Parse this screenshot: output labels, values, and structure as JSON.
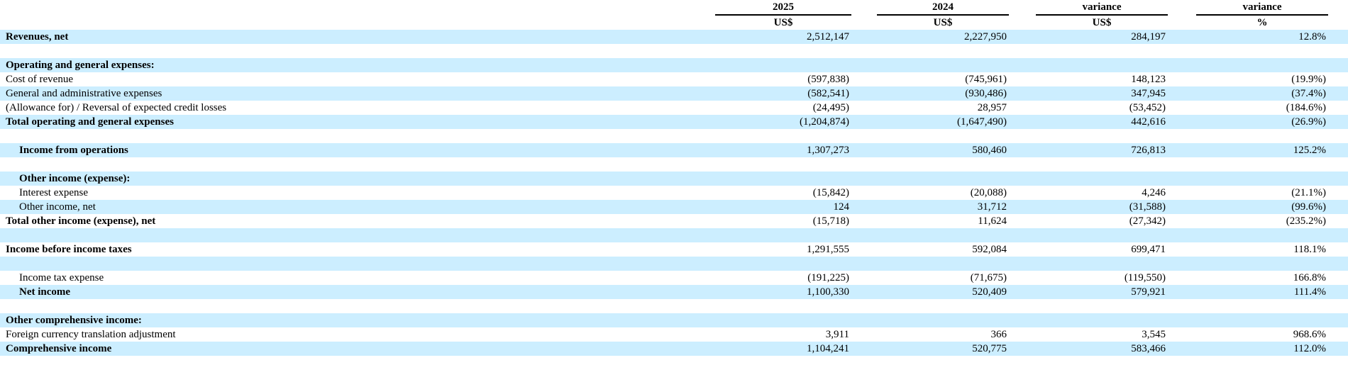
{
  "table": {
    "columns": [
      {
        "label": "2025",
        "sub": "US$"
      },
      {
        "label": "2024",
        "sub": "US$"
      },
      {
        "label": "variance",
        "sub": "US$"
      },
      {
        "label": "variance",
        "sub": "%"
      }
    ],
    "rows": [
      {
        "label": "Revenues, net",
        "bold": true,
        "indent": 0,
        "shaded": true,
        "values": [
          "2,512,147",
          "2,227,950",
          "284,197",
          "12.8%"
        ]
      },
      {
        "label": "",
        "bold": false,
        "indent": 0,
        "shaded": false,
        "values": [
          "",
          "",
          "",
          ""
        ]
      },
      {
        "label": "Operating and general expenses:",
        "bold": true,
        "indent": 0,
        "shaded": true,
        "values": [
          "",
          "",
          "",
          ""
        ]
      },
      {
        "label": "Cost of revenue",
        "bold": false,
        "indent": 0,
        "shaded": false,
        "values": [
          "(597,838)",
          "(745,961)",
          "148,123",
          "(19.9%)"
        ]
      },
      {
        "label": "General and administrative expenses",
        "bold": false,
        "indent": 0,
        "shaded": true,
        "values": [
          "(582,541)",
          "(930,486)",
          "347,945",
          "(37.4%)"
        ]
      },
      {
        "label": "(Allowance for) / Reversal of expected credit losses",
        "bold": false,
        "indent": 0,
        "shaded": false,
        "values": [
          "(24,495)",
          "28,957",
          "(53,452)",
          "(184.6%)"
        ]
      },
      {
        "label": "Total operating and general expenses",
        "bold": true,
        "indent": 0,
        "shaded": true,
        "values": [
          "(1,204,874)",
          "(1,647,490)",
          "442,616",
          "(26.9%)"
        ]
      },
      {
        "label": "",
        "bold": false,
        "indent": 0,
        "shaded": false,
        "values": [
          "",
          "",
          "",
          ""
        ]
      },
      {
        "label": "Income from operations",
        "bold": true,
        "indent": 1,
        "shaded": true,
        "values": [
          "1,307,273",
          "580,460",
          "726,813",
          "125.2%"
        ]
      },
      {
        "label": "",
        "bold": false,
        "indent": 0,
        "shaded": false,
        "values": [
          "",
          "",
          "",
          ""
        ]
      },
      {
        "label": "Other income (expense):",
        "bold": true,
        "indent": 1,
        "shaded": true,
        "values": [
          "",
          "",
          "",
          ""
        ]
      },
      {
        "label": "Interest expense",
        "bold": false,
        "indent": 1,
        "shaded": false,
        "values": [
          "(15,842)",
          "(20,088)",
          "4,246",
          "(21.1%)"
        ]
      },
      {
        "label": "Other income, net",
        "bold": false,
        "indent": 1,
        "shaded": true,
        "values": [
          "124",
          "31,712",
          "(31,588)",
          "(99.6%)"
        ]
      },
      {
        "label": "Total other income (expense), net",
        "bold": true,
        "indent": 0,
        "shaded": false,
        "values": [
          "(15,718)",
          "11,624",
          "(27,342)",
          "(235.2%)"
        ]
      },
      {
        "label": "",
        "bold": false,
        "indent": 0,
        "shaded": true,
        "values": [
          "",
          "",
          "",
          ""
        ]
      },
      {
        "label": "Income before income taxes",
        "bold": true,
        "indent": 0,
        "shaded": false,
        "values": [
          "1,291,555",
          "592,084",
          "699,471",
          "118.1%"
        ]
      },
      {
        "label": "",
        "bold": false,
        "indent": 0,
        "shaded": true,
        "values": [
          "",
          "",
          "",
          ""
        ]
      },
      {
        "label": "Income tax expense",
        "bold": false,
        "indent": 1,
        "shaded": false,
        "values": [
          "(191,225)",
          "(71,675)",
          "(119,550)",
          "166.8%"
        ]
      },
      {
        "label": "Net income",
        "bold": true,
        "indent": 1,
        "shaded": true,
        "values": [
          "1,100,330",
          "520,409",
          "579,921",
          "111.4%"
        ]
      },
      {
        "label": "",
        "bold": false,
        "indent": 0,
        "shaded": false,
        "values": [
          "",
          "",
          "",
          ""
        ]
      },
      {
        "label": "Other comprehensive income:",
        "bold": true,
        "indent": 0,
        "shaded": true,
        "values": [
          "",
          "",
          "",
          ""
        ]
      },
      {
        "label": "Foreign currency translation adjustment",
        "bold": false,
        "indent": 0,
        "shaded": false,
        "values": [
          "3,911",
          "366",
          "3,545",
          "968.6%"
        ]
      },
      {
        "label": "Comprehensive income",
        "bold": true,
        "indent": 0,
        "shaded": true,
        "values": [
          "1,104,241",
          "520,775",
          "583,466",
          "112.0%"
        ]
      }
    ]
  },
  "colors": {
    "row_highlight": "#CCEEFF",
    "row_plain": "#FFFFFF",
    "text": "#000000",
    "header_rule": "#000000"
  }
}
